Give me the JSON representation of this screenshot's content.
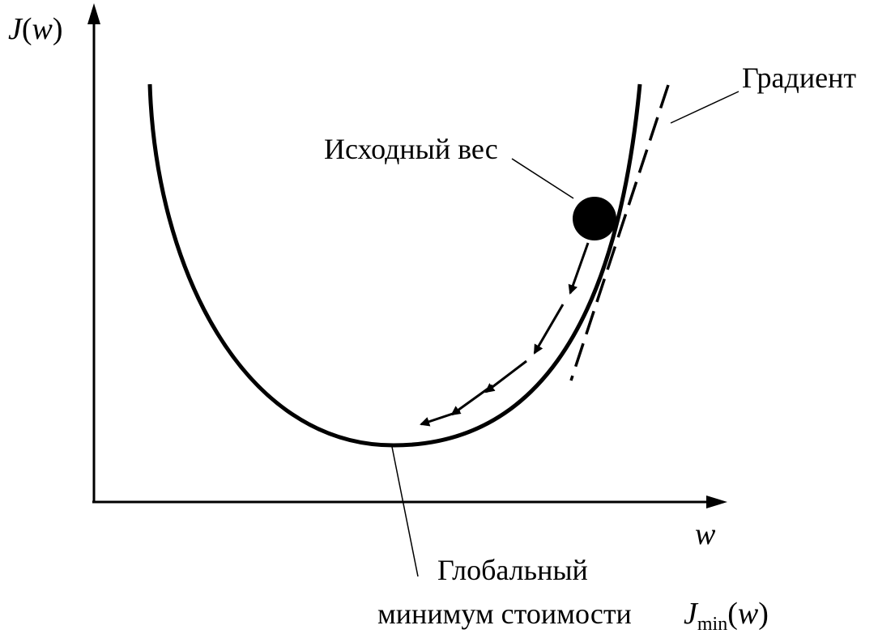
{
  "axes": {
    "y_label_func": "J",
    "y_label_var": "w",
    "x_label": "w"
  },
  "labels": {
    "initial_weight": "Исходный вес",
    "gradient": "Градиент",
    "global_min_line1": "Глобальный",
    "global_min_line2": "минимум стоимости",
    "jmin_func": "J",
    "jmin_sub": "min",
    "jmin_var": "w"
  },
  "colors": {
    "ink": "#000000",
    "background": "#ffffff"
  }
}
